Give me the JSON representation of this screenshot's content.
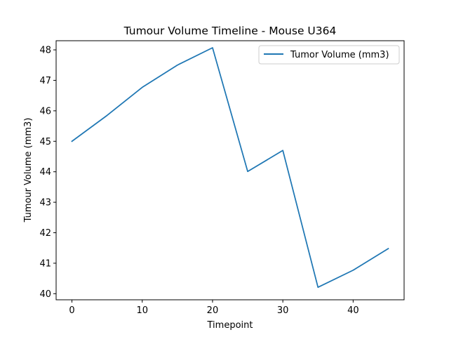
{
  "chart_data": {
    "type": "line",
    "title": "Tumour Volume Timeline - Mouse U364",
    "xlabel": "Timepoint",
    "ylabel": "Tumour Volume (mm3)",
    "xlim": [
      -2.25,
      47.25
    ],
    "ylim": [
      39.8,
      48.3
    ],
    "x_ticks": [
      0,
      10,
      20,
      30,
      40
    ],
    "y_ticks": [
      40,
      41,
      42,
      43,
      44,
      45,
      46,
      47,
      48
    ],
    "grid": false,
    "legend_position": "top-right",
    "series": [
      {
        "name": "Tumor Volume (mm3)",
        "color": "#1f77b4",
        "x": [
          0,
          5,
          10,
          15,
          20,
          25,
          30,
          35,
          40,
          45
        ],
        "values": [
          45.0,
          45.85,
          46.77,
          47.5,
          48.07,
          44.01,
          44.7,
          40.21,
          40.77,
          41.48
        ]
      }
    ]
  }
}
